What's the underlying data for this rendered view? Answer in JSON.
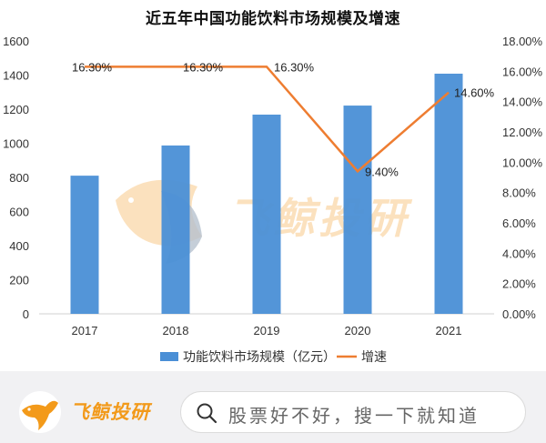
{
  "chart_data": {
    "type": "bar",
    "title": "近五年中国功能饮料市场规模及增速",
    "categories": [
      "2017",
      "2018",
      "2019",
      "2020",
      "2021"
    ],
    "series": [
      {
        "name": "功能饮料市场规模（亿元）",
        "type": "bar",
        "axis": "left",
        "color": "#4a8fd6",
        "values": [
          810,
          987,
          1168,
          1221,
          1408
        ]
      },
      {
        "name": "增速",
        "type": "line",
        "axis": "right",
        "color": "#ee7d31",
        "values": [
          16.3,
          16.3,
          16.3,
          9.4,
          14.6
        ],
        "labels": [
          "16.30%",
          "16.30%",
          "16.30%",
          "9.40%",
          "14.60%"
        ]
      }
    ],
    "left_axis": {
      "ylim": [
        0,
        1600
      ],
      "ticks": [
        "0",
        "200",
        "400",
        "600",
        "800",
        "1000",
        "1200",
        "1400",
        "1600"
      ]
    },
    "right_axis": {
      "ylim": [
        0,
        18
      ],
      "ticks": [
        "0.00%",
        "2.00%",
        "4.00%",
        "6.00%",
        "8.00%",
        "10.00%",
        "12.00%",
        "14.00%",
        "16.00%",
        "18.00%"
      ]
    },
    "xlabel": "",
    "ylabel": "",
    "grid": false,
    "legend_position": "bottom"
  },
  "watermark": {
    "text": "飞鲸投研"
  },
  "footer": {
    "brand": "飞鲸投研",
    "search_placeholder": "股票好不好，搜一下就知道",
    "brand_color": "#f29a1b"
  }
}
